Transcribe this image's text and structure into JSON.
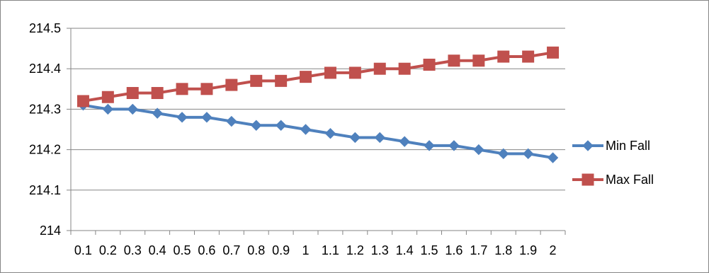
{
  "chart_data": {
    "type": "line",
    "title": "",
    "xlabel": "",
    "ylabel": "",
    "categories": [
      "0.1",
      "0.2",
      "0.3",
      "0.4",
      "0.5",
      "0.6",
      "0.7",
      "0.8",
      "0.9",
      "1",
      "1.1",
      "1.2",
      "1.3",
      "1.4",
      "1.5",
      "1.6",
      "1.7",
      "1.8",
      "1.9",
      "2"
    ],
    "ylim": [
      214,
      214.5
    ],
    "y_ticks": [
      "214",
      "214.1",
      "214.2",
      "214.3",
      "214.4",
      "214.5"
    ],
    "grid": "horizontal",
    "legend_position": "right",
    "series": [
      {
        "name": "Min Fall",
        "color": "#4f81bd",
        "marker": "diamond",
        "values": [
          214.31,
          214.3,
          214.3,
          214.29,
          214.28,
          214.28,
          214.27,
          214.26,
          214.26,
          214.25,
          214.24,
          214.23,
          214.23,
          214.22,
          214.21,
          214.21,
          214.2,
          214.19,
          214.19,
          214.18
        ]
      },
      {
        "name": "Max Fall",
        "color": "#c0504d",
        "marker": "square",
        "values": [
          214.32,
          214.33,
          214.34,
          214.34,
          214.35,
          214.35,
          214.36,
          214.37,
          214.37,
          214.38,
          214.39,
          214.39,
          214.4,
          214.4,
          214.41,
          214.42,
          214.42,
          214.43,
          214.43,
          214.44
        ]
      }
    ]
  }
}
